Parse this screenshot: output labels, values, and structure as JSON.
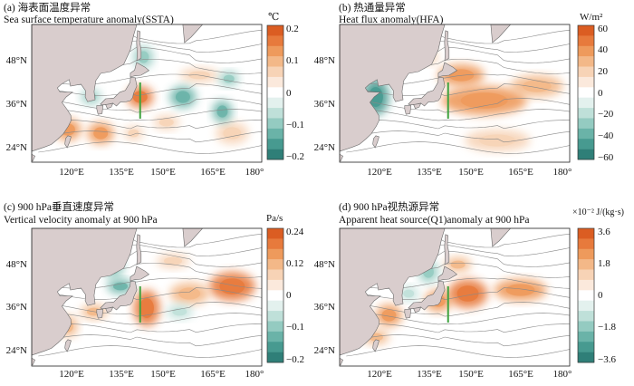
{
  "colors": {
    "land": "#d9cdcd",
    "contour": "#8a8a8a",
    "transect": "#3fa33f",
    "ocean": "#ffffff"
  },
  "axes": {
    "lon_ticks": [
      "120°E",
      "135°E",
      "150°E",
      "165°E",
      "180°"
    ],
    "lat_ticks": [
      "24°N",
      "36°N",
      "48°N"
    ]
  },
  "chart_data": [
    {
      "type": "heatmap",
      "id": "a",
      "title_line1": "(a) 海表面温度异常",
      "title_line2": "Sea surface temperature anomaly(SSTA)",
      "unit": "℃",
      "colorbar_ticks": [
        "0.2",
        "0.1",
        "0",
        "−0.1",
        "−0.2"
      ],
      "colorbar_range": [
        -0.2,
        0.2
      ],
      "xlim": [
        110,
        180
      ],
      "ylim": [
        18,
        56
      ],
      "blobs": [
        {
          "lon": 143,
          "lat": 36,
          "rx": 4,
          "ry": 3,
          "v": 0.75
        },
        {
          "lon": 151,
          "lat": 29,
          "rx": 4,
          "ry": 2,
          "v": 0.3
        },
        {
          "lon": 121,
          "lat": 27,
          "rx": 4,
          "ry": 3,
          "v": 0.5
        },
        {
          "lon": 131,
          "lat": 26,
          "rx": 4,
          "ry": 3,
          "v": 0.55
        },
        {
          "lon": 141,
          "lat": 26,
          "rx": 3,
          "ry": 2,
          "v": 0.3
        },
        {
          "lon": 161,
          "lat": 42,
          "rx": 6,
          "ry": 2,
          "v": 0.25
        },
        {
          "lon": 171,
          "lat": 26,
          "rx": 5,
          "ry": 3,
          "v": 0.25
        },
        {
          "lon": 156,
          "lat": 36,
          "rx": 4,
          "ry": 3,
          "v": -0.6
        },
        {
          "lon": 168,
          "lat": 32,
          "rx": 3,
          "ry": 3,
          "v": -0.55
        },
        {
          "lon": 144,
          "lat": 47,
          "rx": 3,
          "ry": 3,
          "v": -0.45
        },
        {
          "lon": 170,
          "lat": 41,
          "rx": 3,
          "ry": 2,
          "v": -0.35
        },
        {
          "lon": 128,
          "lat": 36,
          "rx": 3,
          "ry": 2,
          "v": -0.35
        }
      ]
    },
    {
      "type": "heatmap",
      "id": "b",
      "title_line1": "(b) 热通量异常",
      "title_line2": "Heat flux anomaly(HFA)",
      "unit": "W/m²",
      "colorbar_ticks": [
        "60",
        "40",
        "20",
        "0",
        "−20",
        "−40",
        "−60"
      ],
      "colorbar_range": [
        -60,
        60
      ],
      "xlim": [
        110,
        180
      ],
      "ylim": [
        18,
        56
      ],
      "blobs": [
        {
          "lon": 147,
          "lat": 42,
          "rx": 7,
          "ry": 3,
          "v": 0.55
        },
        {
          "lon": 154,
          "lat": 35,
          "rx": 13,
          "ry": 4,
          "v": 0.6
        },
        {
          "lon": 170,
          "lat": 39,
          "rx": 8,
          "ry": 3,
          "v": 0.45
        },
        {
          "lon": 158,
          "lat": 24,
          "rx": 10,
          "ry": 3,
          "v": 0.3
        },
        {
          "lon": 137,
          "lat": 47,
          "rx": 3,
          "ry": 2,
          "v": 0.3
        },
        {
          "lon": 121,
          "lat": 36,
          "rx": 4,
          "ry": 5,
          "v": -0.7
        },
        {
          "lon": 117,
          "lat": 30,
          "rx": 2,
          "ry": 3,
          "v": -0.4
        }
      ]
    },
    {
      "type": "heatmap",
      "id": "c",
      "title_line1": "(c) 900 hPa垂直速度异常",
      "title_line2": "Vertical velocity anomaly at 900 hPa",
      "unit": "Pa/s",
      "colorbar_ticks": [
        "0.24",
        "0.12",
        "0",
        "−0.1",
        "−0.2"
      ],
      "colorbar_range": [
        -0.2,
        0.24
      ],
      "xlim": [
        110,
        180
      ],
      "ylim": [
        18,
        56
      ],
      "blobs": [
        {
          "lon": 145,
          "lat": 34,
          "rx": 4,
          "ry": 5,
          "v": 0.8
        },
        {
          "lon": 171,
          "lat": 40,
          "rx": 7,
          "ry": 4,
          "v": 0.7
        },
        {
          "lon": 158,
          "lat": 38,
          "rx": 6,
          "ry": 3,
          "v": 0.45
        },
        {
          "lon": 129,
          "lat": 33,
          "rx": 4,
          "ry": 2,
          "v": 0.45
        },
        {
          "lon": 121,
          "lat": 29,
          "rx": 3,
          "ry": 3,
          "v": 0.4
        },
        {
          "lon": 153,
          "lat": 47,
          "rx": 5,
          "ry": 2,
          "v": 0.3
        },
        {
          "lon": 137,
          "lat": 40,
          "rx": 4,
          "ry": 2,
          "v": -0.55
        },
        {
          "lon": 135,
          "lat": 45,
          "rx": 3,
          "ry": 3,
          "v": -0.4
        },
        {
          "lon": 155,
          "lat": 33,
          "rx": 4,
          "ry": 2,
          "v": -0.3
        }
      ]
    },
    {
      "type": "heatmap",
      "id": "d",
      "title_line1": "(d) 900 hPa视热源异常",
      "title_line2": "Apparent heat source(Q1)anomaly at 900 hPa",
      "unit": "×10⁻² J/(kg·s)",
      "colorbar_ticks": [
        "3.6",
        "1.8",
        "0",
        "−1.8",
        "−3.6"
      ],
      "colorbar_range": [
        -3.6,
        3.6
      ],
      "xlim": [
        110,
        180
      ],
      "ylim": [
        18,
        56
      ],
      "blobs": [
        {
          "lon": 149,
          "lat": 38,
          "rx": 6,
          "ry": 4,
          "v": 0.8
        },
        {
          "lon": 140,
          "lat": 36,
          "rx": 4,
          "ry": 3,
          "v": 0.6
        },
        {
          "lon": 165,
          "lat": 39,
          "rx": 8,
          "ry": 3,
          "v": 0.5
        },
        {
          "lon": 125,
          "lat": 32,
          "rx": 4,
          "ry": 3,
          "v": 0.55
        },
        {
          "lon": 121,
          "lat": 26,
          "rx": 4,
          "ry": 2,
          "v": 0.45
        },
        {
          "lon": 146,
          "lat": 46,
          "rx": 4,
          "ry": 2,
          "v": 0.35
        },
        {
          "lon": 137,
          "lat": 44,
          "rx": 3,
          "ry": 3,
          "v": -0.4
        },
        {
          "lon": 131,
          "lat": 38,
          "rx": 3,
          "ry": 2,
          "v": -0.3
        }
      ]
    }
  ]
}
